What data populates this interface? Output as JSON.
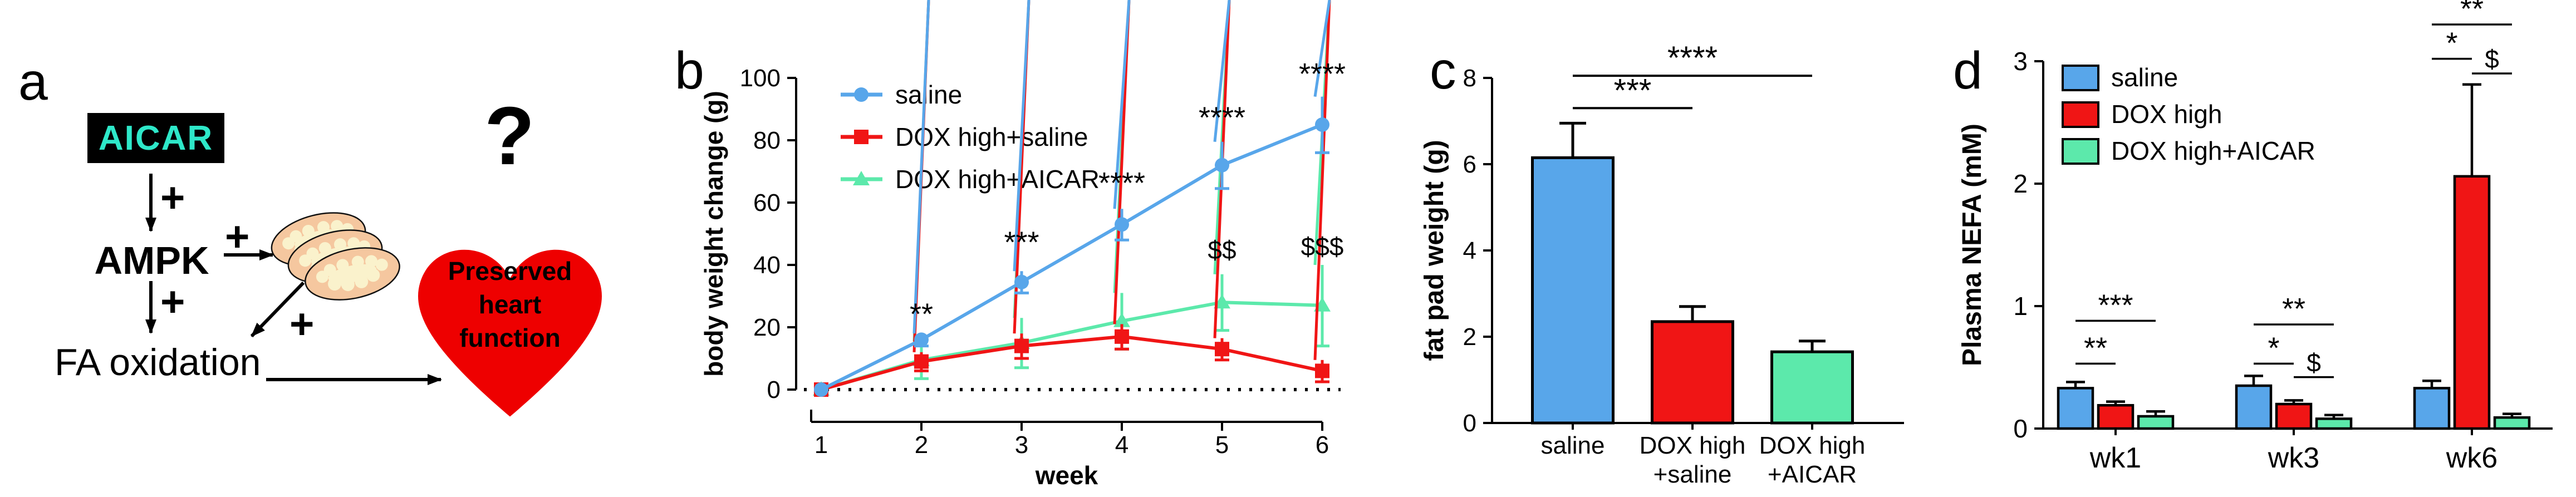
{
  "figure": {
    "background": "#FFFFFF"
  },
  "panel_a": {
    "letter": "a",
    "aicar_label": "AICAR",
    "ampk_label": "AMPK",
    "fa_oxidation_label": "FA oxidation",
    "plus_sign": "+",
    "question_mark": "?",
    "heart_lines": [
      "Preserved",
      "heart",
      "function"
    ],
    "colors": {
      "aicar_bg": "#000000",
      "aicar_text": "#2EE8C9",
      "heart_red": "#EE0000",
      "mito_fill": "#F5C79F",
      "mito_inner": "#FAF2CC",
      "arrow": "#000000"
    }
  },
  "chart_data": [
    {
      "panel": "b",
      "type": "line",
      "title": "",
      "xlabel": "week",
      "ylabel": "body weight change (g)",
      "x": [
        1,
        2,
        3,
        4,
        5,
        6
      ],
      "xlim": [
        1,
        6
      ],
      "ylim": [
        0,
        100
      ],
      "yticks": [
        0,
        20,
        40,
        60,
        80,
        100
      ],
      "xticks": [
        1,
        2,
        3,
        4,
        5,
        6
      ],
      "grid": false,
      "legend_position": "top-left",
      "zero_line": "dotted",
      "series": [
        {
          "name": "saline",
          "color": "#58A6EA",
          "marker": "circle",
          "values": [
            0,
            16,
            34.5,
            53,
            72,
            85
          ],
          "errors": [
            0,
            2,
            3.5,
            5,
            7.5,
            9
          ]
        },
        {
          "name": "DOX high+saline",
          "color": "#F01515",
          "marker": "square",
          "values": [
            0,
            9,
            14,
            17,
            13,
            6
          ],
          "errors": [
            0,
            3,
            4,
            4,
            3.5,
            3.5
          ]
        },
        {
          "name": "DOX high+AICAR",
          "color": "#5CE9AB",
          "marker": "triangle",
          "values": [
            0,
            9.5,
            15,
            22,
            28,
            27
          ],
          "errors": [
            0,
            6,
            8,
            9,
            9,
            13
          ]
        }
      ],
      "annotations": [
        {
          "x": 2,
          "y": 21,
          "text": "**"
        },
        {
          "x": 3,
          "y": 44,
          "text": "***"
        },
        {
          "x": 4,
          "y": 63,
          "text": "****"
        },
        {
          "x": 5,
          "y": 84,
          "text": "****"
        },
        {
          "x": 6,
          "y": 98,
          "text": "****"
        },
        {
          "x": 5,
          "y": 42,
          "text": "$$"
        },
        {
          "x": 6,
          "y": 43,
          "text": "$$$"
        }
      ]
    },
    {
      "panel": "c",
      "type": "bar",
      "title": "",
      "xlabel": "",
      "ylabel": "fat pad weight (g)",
      "ylim": [
        0,
        8
      ],
      "yticks": [
        0,
        2,
        4,
        6,
        8
      ],
      "categories": [
        [
          "saline"
        ],
        [
          "DOX high",
          "+saline"
        ],
        [
          "DOX high",
          "+AICAR"
        ]
      ],
      "values": [
        6.15,
        2.35,
        1.65
      ],
      "errors": [
        0.8,
        0.35,
        0.25
      ],
      "colors": [
        "#58A6EA",
        "#F01515",
        "#5CE9AB"
      ],
      "significance": [
        {
          "from": 0,
          "to": 1,
          "y": 7.3,
          "text": "***"
        },
        {
          "from": 0,
          "to": 2,
          "y": 8.05,
          "text": "****"
        }
      ]
    },
    {
      "panel": "d",
      "type": "grouped-bar",
      "title": "",
      "xlabel": "",
      "ylabel": "Plasma NEFA (mM)",
      "ylim": [
        0,
        3
      ],
      "yticks": [
        0,
        1,
        2,
        3
      ],
      "categories": [
        "wk1",
        "wk3",
        "wk6"
      ],
      "legend_position": "top-left",
      "series": [
        {
          "name": "saline",
          "color": "#58A6EA",
          "values": [
            0.33,
            0.35,
            0.33
          ],
          "errors": [
            0.05,
            0.08,
            0.06
          ]
        },
        {
          "name": "DOX high",
          "color": "#F01515",
          "values": [
            0.19,
            0.2,
            2.06
          ],
          "errors": [
            0.03,
            0.03,
            0.75
          ]
        },
        {
          "name": "DOX high+AICAR",
          "color": "#5CE9AB",
          "values": [
            0.1,
            0.08,
            0.09
          ],
          "errors": [
            0.04,
            0.03,
            0.03
          ]
        }
      ],
      "significance": [
        {
          "group": 0,
          "from": 0,
          "to": 1,
          "y": 0.53,
          "text": "**"
        },
        {
          "group": 0,
          "from": 0,
          "to": 2,
          "y": 0.88,
          "text": "***"
        },
        {
          "group": 1,
          "from": 0,
          "to": 1,
          "y": 0.53,
          "text": "*"
        },
        {
          "group": 1,
          "from": 0,
          "to": 2,
          "y": 0.85,
          "text": "**"
        },
        {
          "group": 1,
          "from": 1,
          "to": 2,
          "y": 0.42,
          "text": "$"
        },
        {
          "group": 2,
          "from": 0,
          "to": 1,
          "y": 3.02,
          "text": "*"
        },
        {
          "group": 2,
          "from": 0,
          "to": 2,
          "y": 3.3,
          "text": "**"
        },
        {
          "group": 2,
          "from": 1,
          "to": 2,
          "y": 2.9,
          "text": "$"
        }
      ]
    }
  ]
}
